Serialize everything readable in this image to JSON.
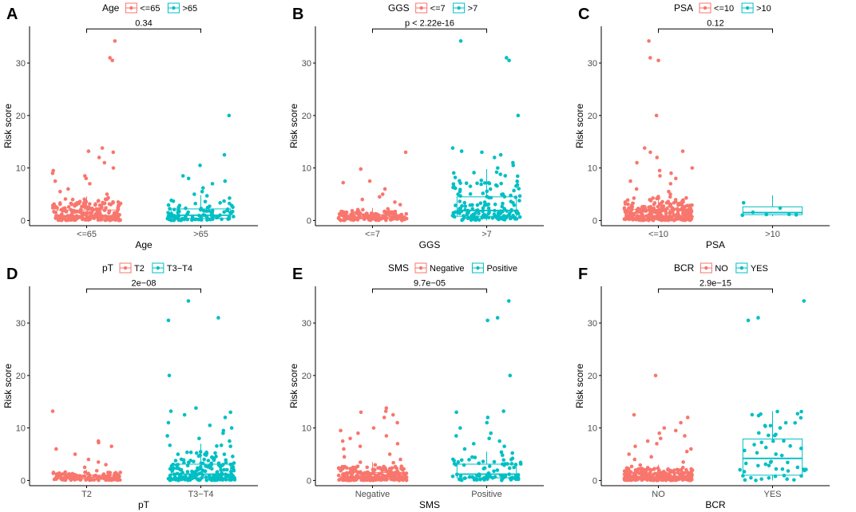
{
  "colors": {
    "group1": "#F8766D",
    "group2": "#00BFC4",
    "axis": "#000000",
    "tick": "#4d4d4d"
  },
  "chart_data": [
    {
      "panel": "A",
      "type": "box+jitter",
      "legend_title": "Age",
      "legend_position": "top",
      "categories": [
        "<=65",
        ">65"
      ],
      "xlabel": "Age",
      "ylabel": "Risk score",
      "ylim": [
        -1,
        37
      ],
      "yticks": [
        0,
        10,
        20,
        30
      ],
      "pvalue": "0.34",
      "boxes": [
        {
          "q1": 0.4,
          "median": 0.9,
          "q3": 2.0,
          "whisker_low": 0.0,
          "whisker_high": 4.6
        },
        {
          "q1": 0.4,
          "median": 1.0,
          "q3": 2.2,
          "whisker_low": 0.0,
          "whisker_high": 4.8
        }
      ],
      "outliers": [
        [
          34.2,
          31.0,
          30.5,
          13.8,
          13.2,
          13.0,
          12.0,
          11.0,
          10.0,
          9.5,
          9.0,
          8.5,
          8.0,
          7.5,
          7.0,
          6.0,
          5.5,
          5.0
        ],
        [
          20.0,
          12.5,
          10.5,
          8.5,
          8.0,
          7.5,
          7.0,
          6.2,
          5.5,
          5.0
        ]
      ],
      "n_points": [
        230,
        90
      ]
    },
    {
      "panel": "B",
      "type": "box+jitter",
      "legend_title": "GGS",
      "legend_position": "top",
      "categories": [
        "<=7",
        ">7"
      ],
      "xlabel": "GGS",
      "ylabel": "Risk score",
      "ylim": [
        -1,
        37
      ],
      "yticks": [
        0,
        10,
        20,
        30
      ],
      "pvalue": "p < 2.22e-16",
      "boxes": [
        {
          "q1": 0.3,
          "median": 0.6,
          "q3": 1.1,
          "whisker_low": 0.0,
          "whisker_high": 2.4
        },
        {
          "q1": 0.8,
          "median": 1.9,
          "q3": 4.5,
          "whisker_low": 0.0,
          "whisker_high": 9.8
        }
      ],
      "outliers": [
        [
          13.0,
          9.8,
          7.5,
          7.2,
          6.0,
          5.0,
          4.5,
          4.0,
          3.5,
          3.0
        ],
        [
          34.2,
          31.0,
          30.5,
          20.0,
          13.8,
          13.2,
          13.0,
          12.5,
          12.0,
          11.0,
          10.5,
          10.0
        ]
      ],
      "n_points": [
        150,
        170
      ]
    },
    {
      "panel": "C",
      "type": "box+jitter",
      "legend_title": "PSA",
      "legend_position": "top",
      "categories": [
        "<=10",
        ">10"
      ],
      "xlabel": "PSA",
      "ylabel": "Risk score",
      "ylim": [
        -1,
        37
      ],
      "yticks": [
        0,
        10,
        20,
        30
      ],
      "pvalue": "0.12",
      "boxes": [
        {
          "q1": 0.4,
          "median": 0.9,
          "q3": 2.1,
          "whisker_low": 0.0,
          "whisker_high": 4.6
        },
        {
          "q1": 1.1,
          "median": 1.5,
          "q3": 2.6,
          "whisker_low": 0.8,
          "whisker_high": 4.8
        }
      ],
      "outliers": [
        [
          34.2,
          31.0,
          30.5,
          20.0,
          13.8,
          13.2,
          13.0,
          12.0,
          11.0,
          10.0,
          9.5,
          9.0,
          8.5,
          8.0,
          7.5,
          7.0,
          6.0,
          5.5,
          5.0
        ],
        []
      ],
      "n_points": [
        310,
        7
      ]
    },
    {
      "panel": "D",
      "type": "box+jitter",
      "legend_title": "pT",
      "legend_position": "top",
      "categories": [
        "T2",
        "T3−T4"
      ],
      "xlabel": "pT",
      "ylabel": "Risk score",
      "ylim": [
        -1,
        37
      ],
      "yticks": [
        0,
        10,
        20,
        30
      ],
      "pvalue": "2e−08",
      "boxes": [
        {
          "q1": 0.3,
          "median": 0.6,
          "q3": 1.0,
          "whisker_low": 0.0,
          "whisker_high": 2.0
        },
        {
          "q1": 0.5,
          "median": 1.2,
          "q3": 3.1,
          "whisker_low": 0.0,
          "whisker_high": 7.0
        }
      ],
      "outliers": [
        [
          13.2,
          7.5,
          7.2,
          6.5,
          6.0,
          5.0,
          4.0,
          3.5,
          3.0,
          2.5
        ],
        [
          34.2,
          31.0,
          30.5,
          20.0,
          13.8,
          13.2,
          13.0,
          12.5,
          12.0,
          11.0,
          10.5,
          10.0,
          9.5,
          9.0,
          8.5,
          8.0,
          7.5
        ]
      ],
      "n_points": [
        120,
        200
      ]
    },
    {
      "panel": "E",
      "type": "box+jitter",
      "legend_title": "SMS",
      "legend_position": "top",
      "categories": [
        "Negative",
        "Positive"
      ],
      "xlabel": "SMS",
      "ylabel": "Risk score",
      "ylim": [
        -1,
        37
      ],
      "yticks": [
        0,
        10,
        20,
        30
      ],
      "pvalue": "9.7e−05",
      "boxes": [
        {
          "q1": 0.3,
          "median": 0.7,
          "q3": 1.5,
          "whisker_low": 0.0,
          "whisker_high": 3.5
        },
        {
          "q1": 0.5,
          "median": 1.2,
          "q3": 3.1,
          "whisker_low": 0.0,
          "whisker_high": 5.5
        }
      ],
      "outliers": [
        [
          13.8,
          13.2,
          13.0,
          12.5,
          12.0,
          11.0,
          10.0,
          9.5,
          9.0,
          8.5,
          8.0,
          7.5,
          7.0,
          6.5,
          6.0,
          5.0,
          4.5,
          4.0
        ],
        [
          34.2,
          31.0,
          30.5,
          20.0,
          13.2,
          13.0,
          12.0,
          11.0,
          10.0,
          9.0,
          8.5,
          8.0,
          7.5,
          7.0,
          6.5,
          6.0
        ]
      ],
      "n_points": [
        230,
        90
      ]
    },
    {
      "panel": "F",
      "type": "box+jitter",
      "legend_title": "BCR",
      "legend_position": "top",
      "categories": [
        "NO",
        "YES"
      ],
      "xlabel": "BCR",
      "ylabel": "Risk score",
      "ylim": [
        -1,
        37
      ],
      "yticks": [
        0,
        10,
        20,
        30
      ],
      "pvalue": "2.9e−15",
      "boxes": [
        {
          "q1": 0.3,
          "median": 0.7,
          "q3": 1.4,
          "whisker_low": 0.0,
          "whisker_high": 3.0
        },
        {
          "q1": 1.0,
          "median": 4.2,
          "q3": 7.9,
          "whisker_low": 0.0,
          "whisker_high": 13.2
        }
      ],
      "outliers": [
        [
          20.0,
          12.5,
          12.0,
          11.0,
          10.0,
          9.5,
          9.0,
          8.5,
          8.0,
          7.5,
          7.0,
          6.5,
          6.0,
          5.5,
          5.0,
          4.5,
          4.0,
          3.5
        ],
        [
          34.2,
          31.0,
          30.5
        ]
      ],
      "n_points": [
        260,
        55
      ]
    }
  ]
}
